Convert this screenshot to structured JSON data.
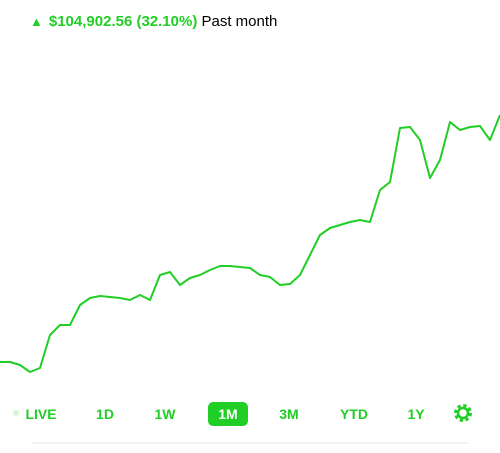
{
  "header": {
    "change": "$104,902.56 (32.10%)",
    "period": "Past month"
  },
  "chart_data": {
    "type": "line",
    "color": "#21ce25",
    "ylim": [
      0,
      300
    ],
    "values": [
      38,
      38,
      35,
      28,
      32,
      65,
      75,
      75,
      95,
      102,
      104,
      103,
      102,
      100,
      105,
      100,
      125,
      128,
      115,
      122,
      125,
      130,
      134,
      134,
      133,
      132,
      125,
      123,
      115,
      116,
      125,
      145,
      165,
      172,
      175,
      178,
      180,
      178,
      210,
      218,
      272,
      273,
      260,
      222,
      240,
      278,
      270,
      273,
      274,
      260,
      285
    ]
  },
  "ranges": [
    "LIVE",
    "1D",
    "1W",
    "1M",
    "3M",
    "YTD",
    "1Y"
  ],
  "selected_range": "1M"
}
